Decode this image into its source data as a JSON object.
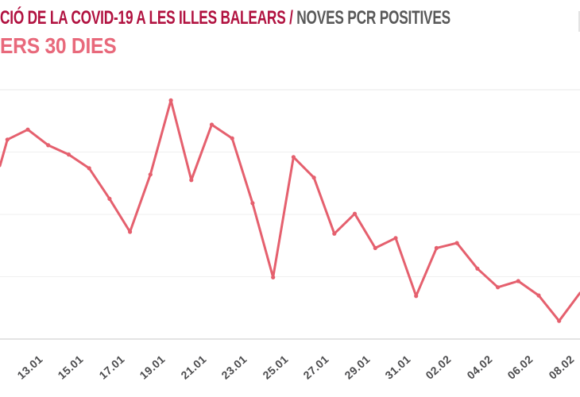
{
  "header": {
    "title_primary": "CIÓ DE LA COVID-19 A LES ILLES BALEARS /",
    "title_secondary": "NOVES PCR POSITIVES",
    "subtitle": "ERS 30 DIES"
  },
  "colors": {
    "title_primary": "#b11240",
    "title_secondary": "#595959",
    "subtitle": "#e8697b",
    "line": "#e5606e",
    "marker": "#e5606e",
    "gridline": "#efefef",
    "top_gridline": "#e9e9e9",
    "axis_line": "#dcdcdc",
    "tick_label": "#4b4b4d"
  },
  "chart_data": {
    "type": "line",
    "title": "CIÓ DE LA COVID-19 A LES ILLES BALEARS / NOVES PCR POSITIVES",
    "subtitle": "ERS 30 DIES",
    "xlabel": "",
    "ylabel": "",
    "ylim": [
      0,
      400
    ],
    "gridline_step": 100,
    "grid": "horizontal-only",
    "legend": "none",
    "y_axis_labels_visible": false,
    "x_tick_labels": [
      "13.01",
      "15.01",
      "17.01",
      "19.01",
      "21.01",
      "23.01",
      "25.01",
      "27.01",
      "29.01",
      "31.01",
      "02.02",
      "04.02",
      "06.02",
      "08.02"
    ],
    "points": [
      {
        "date": "",
        "value": 278,
        "edge": true
      },
      {
        "date": "12.01",
        "value": 320
      },
      {
        "date": "13.01",
        "value": 336
      },
      {
        "date": "14.01",
        "value": 311
      },
      {
        "date": "15.01",
        "value": 296
      },
      {
        "date": "16.01",
        "value": 274
      },
      {
        "date": "17.01",
        "value": 225
      },
      {
        "date": "18.01",
        "value": 172
      },
      {
        "date": "19.01",
        "value": 264
      },
      {
        "date": "20.01",
        "value": 383
      },
      {
        "date": "21.01",
        "value": 255
      },
      {
        "date": "22.01",
        "value": 344
      },
      {
        "date": "23.01",
        "value": 322
      },
      {
        "date": "24.01",
        "value": 218
      },
      {
        "date": "25.01",
        "value": 99
      },
      {
        "date": "26.01",
        "value": 292
      },
      {
        "date": "27.01",
        "value": 259
      },
      {
        "date": "28.01",
        "value": 169
      },
      {
        "date": "29.01",
        "value": 201
      },
      {
        "date": "30.01",
        "value": 146
      },
      {
        "date": "31.01",
        "value": 162
      },
      {
        "date": "01.02",
        "value": 69
      },
      {
        "date": "02.02",
        "value": 146
      },
      {
        "date": "03.02",
        "value": 154
      },
      {
        "date": "04.02",
        "value": 113
      },
      {
        "date": "05.02",
        "value": 83
      },
      {
        "date": "06.02",
        "value": 93
      },
      {
        "date": "07.02",
        "value": 70
      },
      {
        "date": "08.02",
        "value": 29
      },
      {
        "date": "",
        "value": 74,
        "edge": true
      }
    ]
  }
}
